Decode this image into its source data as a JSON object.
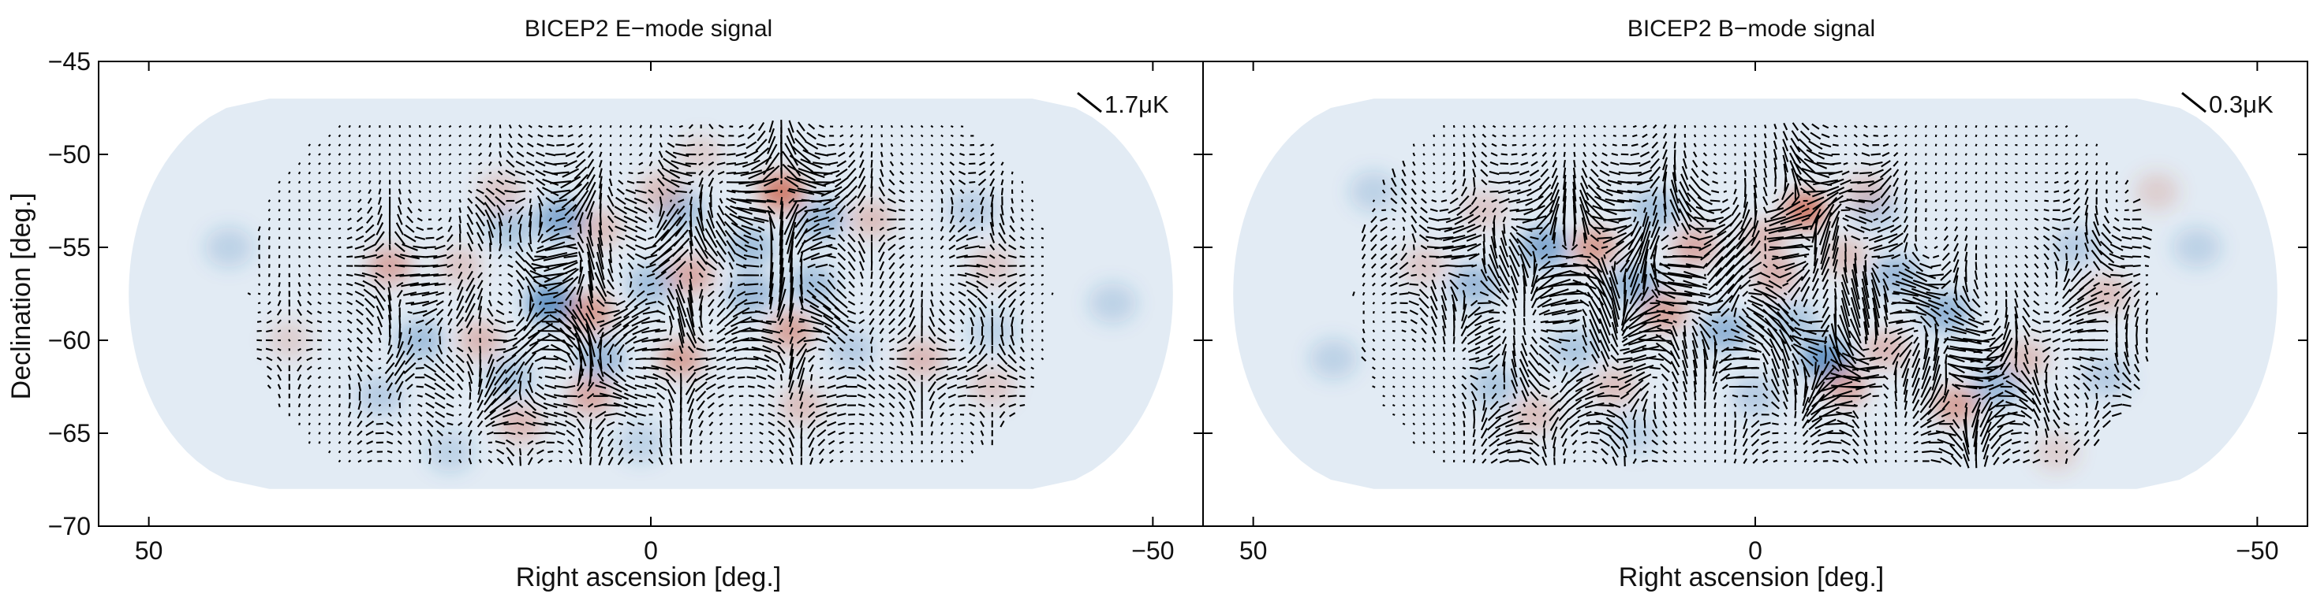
{
  "chart_data": [
    {
      "type": "heatmap",
      "title": "BICEP2 E−mode signal",
      "xlabel": "Right ascension [deg.]",
      "ylabel": "Declination [deg.]",
      "xlim": [
        55,
        -55
      ],
      "ylim": [
        -70,
        -45
      ],
      "xticks": [
        50,
        0,
        -50
      ],
      "xtick_labels": [
        "50",
        "0",
        "−50"
      ],
      "yticks": [
        -45,
        -50,
        -55,
        -60,
        -65,
        -70
      ],
      "ytick_labels": [
        "−45",
        "−50",
        "−55",
        "−60",
        "−65",
        "−70"
      ],
      "scale_label": "1.7μK",
      "legend_position": "top-right",
      "colormap": {
        "negative": "#2f6fb0",
        "positive": "#c8553d"
      },
      "hot_spots": [
        {
          "ra": -13,
          "dec": -52,
          "amp": 0.75
        },
        {
          "ra": 26,
          "dec": -56,
          "amp": 0.45
        },
        {
          "ra": 6,
          "dec": -58.5,
          "amp": 0.55
        },
        {
          "ra": -4,
          "dec": -56.5,
          "amp": 0.45
        },
        {
          "ra": 5,
          "dec": -54,
          "amp": 0.3
        },
        {
          "ra": -1,
          "dec": -52,
          "amp": 0.3
        },
        {
          "ra": 15,
          "dec": -52,
          "amp": 0.25
        },
        {
          "ra": -22,
          "dec": -53.5,
          "amp": 0.3
        },
        {
          "ra": -3,
          "dec": -61,
          "amp": 0.5
        },
        {
          "ra": -14,
          "dec": -59.5,
          "amp": 0.5
        },
        {
          "ra": -27,
          "dec": -61,
          "amp": 0.35
        },
        {
          "ra": 17,
          "dec": -60,
          "amp": 0.35
        },
        {
          "ra": 6,
          "dec": -63,
          "amp": 0.45
        },
        {
          "ra": 13,
          "dec": -64.5,
          "amp": 0.35
        },
        {
          "ra": -15,
          "dec": -63.5,
          "amp": 0.3
        },
        {
          "ra": 19,
          "dec": -56,
          "amp": 0.25
        },
        {
          "ra": -34,
          "dec": -56,
          "amp": 0.25
        },
        {
          "ra": 36,
          "dec": -60,
          "amp": 0.2
        },
        {
          "ra": -5,
          "dec": -50,
          "amp": 0.2
        },
        {
          "ra": -34,
          "dec": -62.5,
          "amp": 0.25
        }
      ],
      "cold_spots": [
        {
          "ra": 9,
          "dec": -53.5,
          "amp": 0.55
        },
        {
          "ra": 10,
          "dec": -58,
          "amp": 0.7
        },
        {
          "ra": 0,
          "dec": -57,
          "amp": 0.35
        },
        {
          "ra": -3,
          "dec": -53,
          "amp": 0.35
        },
        {
          "ra": -10,
          "dec": -55,
          "amp": 0.35
        },
        {
          "ra": -17,
          "dec": -53.5,
          "amp": 0.4
        },
        {
          "ra": -10,
          "dec": -57.5,
          "amp": 0.4
        },
        {
          "ra": -16,
          "dec": -57,
          "amp": 0.35
        },
        {
          "ra": 23,
          "dec": -60,
          "amp": 0.35
        },
        {
          "ra": 14,
          "dec": -54,
          "amp": 0.3
        },
        {
          "ra": 5,
          "dec": -61,
          "amp": 0.4
        },
        {
          "ra": 14,
          "dec": -62,
          "amp": 0.3
        },
        {
          "ra": 27,
          "dec": -63,
          "amp": 0.25
        },
        {
          "ra": -20,
          "dec": -60.5,
          "amp": 0.25
        },
        {
          "ra": -34,
          "dec": -59.5,
          "amp": 0.2
        },
        {
          "ra": 1,
          "dec": -65.5,
          "amp": 0.2
        },
        {
          "ra": -32,
          "dec": -53,
          "amp": 0.25
        },
        {
          "ra": 42,
          "dec": -55,
          "amp": 0.2
        },
        {
          "ra": -46,
          "dec": -58,
          "amp": 0.2
        },
        {
          "ra": 20,
          "dec": -66,
          "amp": 0.2
        }
      ]
    },
    {
      "type": "heatmap",
      "title": "BICEP2 B−mode signal",
      "xlabel": "Right ascension [deg.]",
      "ylabel": "",
      "xlim": [
        55,
        -55
      ],
      "ylim": [
        -70,
        -45
      ],
      "xticks": [
        50,
        0,
        -50
      ],
      "xtick_labels": [
        "50",
        "0",
        "−50"
      ],
      "yticks": [
        -45,
        -50,
        -55,
        -60,
        -65,
        -70
      ],
      "ytick_labels": [],
      "scale_label": "0.3μK",
      "legend_position": "top-right",
      "colormap": {
        "negative": "#2f6fb0",
        "positive": "#c8553d"
      },
      "hot_spots": [
        {
          "ra": 16,
          "dec": -55,
          "amp": 0.55
        },
        {
          "ra": 6,
          "dec": -55,
          "amp": 0.45
        },
        {
          "ra": -5,
          "dec": -53,
          "amp": 0.75
        },
        {
          "ra": -1,
          "dec": -54.5,
          "amp": 0.35
        },
        {
          "ra": -2,
          "dec": -56.5,
          "amp": 0.4
        },
        {
          "ra": 9,
          "dec": -58.5,
          "amp": 0.5
        },
        {
          "ra": -9,
          "dec": -62.5,
          "amp": 0.45
        },
        {
          "ra": -20,
          "dec": -63.5,
          "amp": 0.5
        },
        {
          "ra": -13,
          "dec": -60.5,
          "amp": 0.35
        },
        {
          "ra": -35,
          "dec": -57.5,
          "amp": 0.3
        },
        {
          "ra": -27,
          "dec": -61,
          "amp": 0.3
        },
        {
          "ra": -11,
          "dec": -52,
          "amp": 0.25
        },
        {
          "ra": 22,
          "dec": -64,
          "amp": 0.3
        },
        {
          "ra": 33,
          "dec": -56,
          "amp": 0.25
        },
        {
          "ra": 14,
          "dec": -62.5,
          "amp": 0.3
        },
        {
          "ra": -9,
          "dec": -55.5,
          "amp": 0.3
        },
        {
          "ra": -40,
          "dec": -52,
          "amp": 0.2
        },
        {
          "ra": 27,
          "dec": -53,
          "amp": 0.25
        },
        {
          "ra": -30,
          "dec": -66,
          "amp": 0.2
        }
      ],
      "cold_spots": [
        {
          "ra": 21,
          "dec": -55,
          "amp": 0.55
        },
        {
          "ra": 28,
          "dec": -57,
          "amp": 0.4
        },
        {
          "ra": 12,
          "dec": -57,
          "amp": 0.45
        },
        {
          "ra": 10,
          "dec": -53,
          "amp": 0.35
        },
        {
          "ra": 3,
          "dec": -59.5,
          "amp": 0.45
        },
        {
          "ra": -7,
          "dec": -61,
          "amp": 0.7
        },
        {
          "ra": -4,
          "dec": -59,
          "amp": 0.3
        },
        {
          "ra": -19,
          "dec": -58.5,
          "amp": 0.45
        },
        {
          "ra": -14,
          "dec": -56.5,
          "amp": 0.4
        },
        {
          "ra": -24,
          "dec": -62.5,
          "amp": 0.4
        },
        {
          "ra": 0,
          "dec": -63,
          "amp": 0.25
        },
        {
          "ra": 18,
          "dec": -60.5,
          "amp": 0.3
        },
        {
          "ra": 26,
          "dec": -62.5,
          "amp": 0.3
        },
        {
          "ra": -32,
          "dec": -55,
          "amp": 0.25
        },
        {
          "ra": -35,
          "dec": -62,
          "amp": 0.25
        },
        {
          "ra": 38,
          "dec": -52,
          "amp": 0.2
        },
        {
          "ra": -12,
          "dec": -53,
          "amp": 0.25
        },
        {
          "ra": 12,
          "dec": -65,
          "amp": 0.2
        },
        {
          "ra": 42,
          "dec": -61,
          "amp": 0.2
        },
        {
          "ra": -44,
          "dec": -55,
          "amp": 0.2
        }
      ]
    }
  ]
}
